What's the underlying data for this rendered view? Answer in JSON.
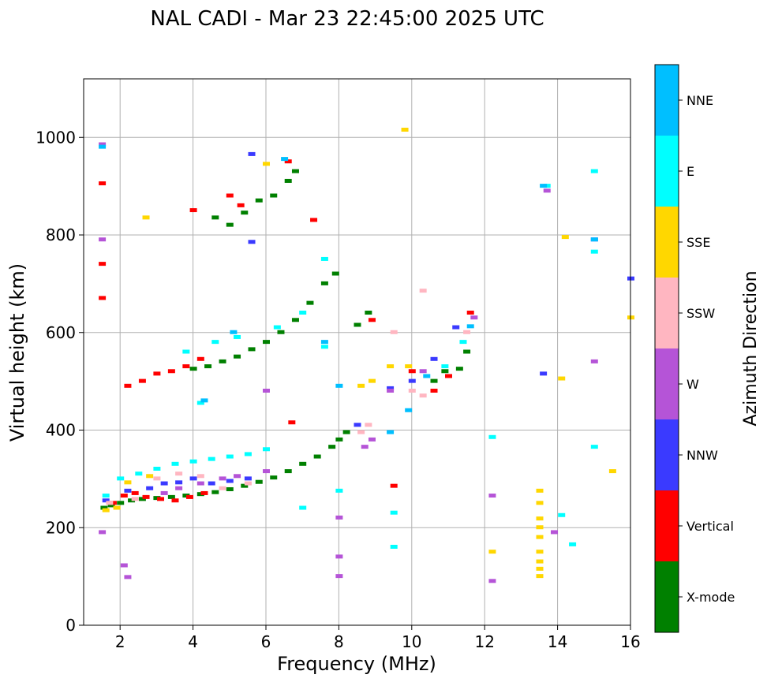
{
  "chart_data": {
    "type": "scatter",
    "title": "NAL CADI - Mar 23 22:45:00 2025 UTC",
    "xlabel": "Frequency (MHz)",
    "ylabel": "Virtual height (km)",
    "xlim": [
      1,
      16
    ],
    "ylim": [
      0,
      1120
    ],
    "xticks": [
      "2",
      "4",
      "6",
      "8",
      "10",
      "12",
      "14",
      "16"
    ],
    "yticks": [
      "0",
      "200",
      "400",
      "600",
      "800",
      "1000"
    ],
    "grid": true,
    "colorbar": {
      "label": "Azimuth Direction",
      "position": "right",
      "categories": [
        {
          "name": "X-mode",
          "color": "#008000"
        },
        {
          "name": "Vertical",
          "color": "#ff0000"
        },
        {
          "name": "NNW",
          "color": "#3a3aff"
        },
        {
          "name": "W",
          "color": "#b554d7"
        },
        {
          "name": "SSW",
          "color": "#ffb6c1"
        },
        {
          "name": "SSE",
          "color": "#ffd700"
        },
        {
          "name": "E",
          "color": "#00ffff"
        },
        {
          "name": "NNE",
          "color": "#00bfff"
        }
      ]
    },
    "series": [
      {
        "name": "X-mode",
        "points": [
          [
            1.55,
            240
          ],
          [
            1.75,
            245
          ],
          [
            2.0,
            250
          ],
          [
            2.3,
            255
          ],
          [
            2.6,
            258
          ],
          [
            3.0,
            260
          ],
          [
            3.4,
            262
          ],
          [
            3.8,
            265
          ],
          [
            4.2,
            268
          ],
          [
            4.6,
            272
          ],
          [
            5.0,
            278
          ],
          [
            5.4,
            285
          ],
          [
            5.8,
            293
          ],
          [
            6.2,
            302
          ],
          [
            6.6,
            315
          ],
          [
            7.0,
            330
          ],
          [
            7.4,
            345
          ],
          [
            7.8,
            365
          ],
          [
            8.0,
            380
          ],
          [
            8.2,
            395
          ],
          [
            4.0,
            525
          ],
          [
            4.4,
            530
          ],
          [
            4.8,
            540
          ],
          [
            5.2,
            550
          ],
          [
            5.6,
            565
          ],
          [
            6.0,
            580
          ],
          [
            6.4,
            600
          ],
          [
            6.8,
            625
          ],
          [
            7.2,
            660
          ],
          [
            7.6,
            700
          ],
          [
            7.9,
            720
          ],
          [
            4.6,
            835
          ],
          [
            5.0,
            820
          ],
          [
            5.4,
            845
          ],
          [
            5.8,
            870
          ],
          [
            6.2,
            880
          ],
          [
            6.6,
            910
          ],
          [
            6.8,
            930
          ],
          [
            8.5,
            615
          ],
          [
            8.8,
            640
          ],
          [
            11.3,
            525
          ],
          [
            11.5,
            560
          ],
          [
            10.6,
            500
          ],
          [
            10.9,
            520
          ]
        ]
      },
      {
        "name": "Vertical",
        "points": [
          [
            1.5,
            670
          ],
          [
            1.5,
            740
          ],
          [
            1.5,
            905
          ],
          [
            1.8,
            250
          ],
          [
            2.1,
            265
          ],
          [
            2.4,
            270
          ],
          [
            2.7,
            262
          ],
          [
            3.1,
            258
          ],
          [
            3.5,
            255
          ],
          [
            3.9,
            262
          ],
          [
            4.3,
            270
          ],
          [
            2.2,
            490
          ],
          [
            2.6,
            500
          ],
          [
            3.0,
            515
          ],
          [
            3.4,
            520
          ],
          [
            3.8,
            530
          ],
          [
            4.2,
            545
          ],
          [
            4.0,
            850
          ],
          [
            5.0,
            880
          ],
          [
            5.3,
            860
          ],
          [
            6.6,
            950
          ],
          [
            7.3,
            830
          ],
          [
            9.5,
            285
          ],
          [
            10.0,
            520
          ],
          [
            10.6,
            480
          ],
          [
            11.0,
            510
          ],
          [
            11.6,
            640
          ],
          [
            6.7,
            415
          ],
          [
            8.9,
            625
          ]
        ]
      },
      {
        "name": "NNW",
        "points": [
          [
            1.6,
            255
          ],
          [
            2.2,
            275
          ],
          [
            2.8,
            280
          ],
          [
            3.2,
            290
          ],
          [
            3.6,
            292
          ],
          [
            4.0,
            300
          ],
          [
            4.5,
            290
          ],
          [
            5.0,
            295
          ],
          [
            5.5,
            300
          ],
          [
            10.0,
            500
          ],
          [
            10.6,
            545
          ],
          [
            11.2,
            610
          ],
          [
            15.0,
            790
          ],
          [
            16.0,
            710
          ],
          [
            13.6,
            515
          ],
          [
            9.4,
            485
          ],
          [
            8.5,
            410
          ],
          [
            5.6,
            965
          ],
          [
            5.6,
            785
          ]
        ]
      },
      {
        "name": "W",
        "points": [
          [
            1.5,
            190
          ],
          [
            1.5,
            790
          ],
          [
            1.5,
            985
          ],
          [
            2.1,
            122
          ],
          [
            2.2,
            98
          ],
          [
            3.2,
            270
          ],
          [
            3.6,
            280
          ],
          [
            4.2,
            290
          ],
          [
            4.8,
            300
          ],
          [
            5.2,
            305
          ],
          [
            6.0,
            315
          ],
          [
            8.0,
            220
          ],
          [
            8.0,
            140
          ],
          [
            8.0,
            100
          ],
          [
            8.7,
            365
          ],
          [
            8.9,
            380
          ],
          [
            9.4,
            480
          ],
          [
            10.3,
            520
          ],
          [
            11.7,
            630
          ],
          [
            12.2,
            265
          ],
          [
            12.2,
            90
          ],
          [
            13.7,
            890
          ],
          [
            13.9,
            190
          ],
          [
            15.0,
            540
          ],
          [
            6.0,
            480
          ]
        ]
      },
      {
        "name": "SSW",
        "points": [
          [
            1.7,
            250
          ],
          [
            2.4,
            258
          ],
          [
            3.0,
            300
          ],
          [
            3.6,
            310
          ],
          [
            4.2,
            305
          ],
          [
            4.8,
            280
          ],
          [
            5.5,
            290
          ],
          [
            8.6,
            395
          ],
          [
            8.8,
            410
          ],
          [
            9.5,
            600
          ],
          [
            10.0,
            480
          ],
          [
            10.3,
            470
          ],
          [
            11.5,
            600
          ],
          [
            10.3,
            685
          ]
        ]
      },
      {
        "name": "SSE",
        "points": [
          [
            1.6,
            235
          ],
          [
            1.9,
            240
          ],
          [
            2.2,
            292
          ],
          [
            2.8,
            305
          ],
          [
            2.7,
            835
          ],
          [
            6.0,
            945
          ],
          [
            8.6,
            490
          ],
          [
            8.9,
            500
          ],
          [
            9.4,
            530
          ],
          [
            9.9,
            530
          ],
          [
            9.8,
            1015
          ],
          [
            12.2,
            150
          ],
          [
            13.5,
            275
          ],
          [
            13.5,
            250
          ],
          [
            13.5,
            218
          ],
          [
            13.5,
            200
          ],
          [
            13.5,
            180
          ],
          [
            13.5,
            150
          ],
          [
            13.5,
            130
          ],
          [
            13.5,
            115
          ],
          [
            13.5,
            100
          ],
          [
            14.1,
            505
          ],
          [
            14.2,
            795
          ],
          [
            15.5,
            315
          ],
          [
            16.0,
            630
          ]
        ]
      },
      {
        "name": "E",
        "points": [
          [
            1.6,
            265
          ],
          [
            2.0,
            300
          ],
          [
            2.5,
            310
          ],
          [
            3.0,
            320
          ],
          [
            3.5,
            330
          ],
          [
            4.0,
            335
          ],
          [
            4.5,
            340
          ],
          [
            5.0,
            345
          ],
          [
            5.5,
            350
          ],
          [
            6.0,
            360
          ],
          [
            4.2,
            455
          ],
          [
            3.8,
            560
          ],
          [
            4.6,
            580
          ],
          [
            5.2,
            590
          ],
          [
            6.3,
            610
          ],
          [
            7.0,
            640
          ],
          [
            7.6,
            750
          ],
          [
            7.6,
            570
          ],
          [
            7.0,
            240
          ],
          [
            8.0,
            275
          ],
          [
            9.5,
            230
          ],
          [
            9.5,
            160
          ],
          [
            12.2,
            385
          ],
          [
            13.7,
            900
          ],
          [
            14.1,
            225
          ],
          [
            14.4,
            165
          ],
          [
            15.0,
            930
          ],
          [
            15.0,
            765
          ],
          [
            15.0,
            365
          ],
          [
            10.9,
            530
          ],
          [
            11.4,
            580
          ]
        ]
      },
      {
        "name": "NNE",
        "points": [
          [
            1.5,
            980
          ],
          [
            4.3,
            460
          ],
          [
            5.1,
            600
          ],
          [
            6.5,
            955
          ],
          [
            7.6,
            580
          ],
          [
            8.0,
            490
          ],
          [
            9.4,
            395
          ],
          [
            9.9,
            440
          ],
          [
            10.4,
            510
          ],
          [
            11.6,
            612
          ],
          [
            13.6,
            900
          ],
          [
            15.0,
            790
          ]
        ]
      }
    ]
  }
}
